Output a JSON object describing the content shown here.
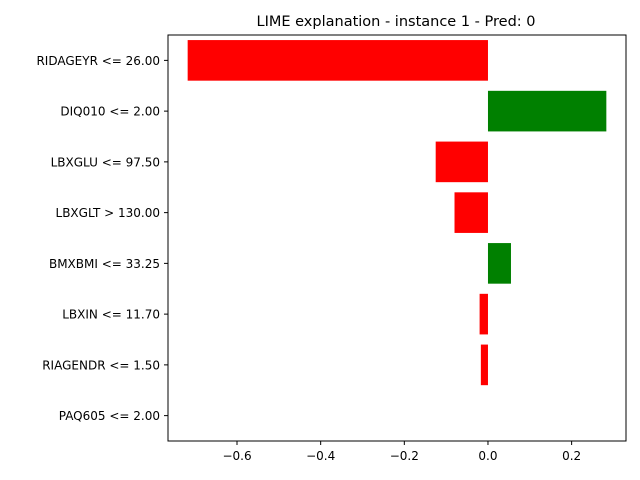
{
  "chart_data": {
    "type": "bar",
    "orientation": "horizontal",
    "title": "LIME explanation - instance 1 - Pred: 0",
    "xlabel": "",
    "ylabel": "",
    "categories": [
      "RIDAGEYR <= 26.00",
      "DIQ010 <= 2.00",
      "LBXGLU <= 97.50",
      "LBXGLT > 130.00",
      "BMXBMI <= 33.25",
      "LBXIN <= 11.70",
      "RIAGENDR <= 1.50",
      "PAQ605 <= 2.00"
    ],
    "values": [
      -0.718,
      0.283,
      -0.125,
      -0.08,
      0.055,
      -0.02,
      -0.017,
      0.0
    ],
    "xlim": [
      -0.765,
      0.33
    ],
    "xticks": [
      -0.6,
      -0.4,
      -0.2,
      0.0,
      0.2
    ],
    "xtick_labels": [
      "−0.6",
      "−0.4",
      "−0.2",
      "0.0",
      "0.2"
    ],
    "colors": {
      "positive": "#008000",
      "negative": "#ff0000"
    },
    "grid": false,
    "legend": "none"
  }
}
